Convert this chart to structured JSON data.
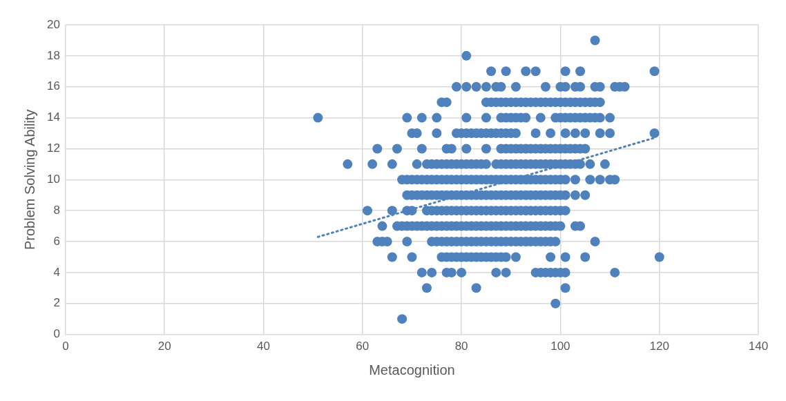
{
  "chart_data": {
    "type": "scatter",
    "xlabel": "Metacognition",
    "ylabel": "Problem Solving Ability",
    "xlim": [
      0,
      140
    ],
    "xticks": [
      0,
      20,
      40,
      60,
      80,
      100,
      120,
      140
    ],
    "ylim": [
      0,
      20
    ],
    "yticks": [
      0,
      2,
      4,
      6,
      8,
      10,
      12,
      14,
      16,
      18,
      20
    ],
    "grid": true,
    "legend": false,
    "marker": "circle",
    "series": [
      {
        "color": "#4f81bd",
        "x": [
          107,
          81,
          86,
          89,
          93,
          95,
          101,
          104,
          119,
          79,
          81,
          83,
          85,
          87,
          88,
          91,
          97,
          100,
          101,
          103,
          104,
          107,
          108,
          111,
          112,
          113,
          76,
          77,
          85,
          86,
          87,
          88,
          89,
          90,
          91,
          92,
          93,
          94,
          95,
          96,
          97,
          98,
          99,
          100,
          101,
          102,
          103,
          104,
          105,
          106,
          107,
          108,
          51,
          69,
          72,
          75,
          81,
          85,
          88,
          89,
          90,
          91,
          92,
          93,
          96,
          99,
          100,
          101,
          102,
          103,
          104,
          105,
          106,
          107,
          108,
          110,
          70,
          71,
          75,
          79,
          80,
          81,
          82,
          83,
          84,
          85,
          86,
          87,
          88,
          89,
          90,
          91,
          95,
          98,
          101,
          103,
          105,
          108,
          110,
          119,
          63,
          67,
          72,
          77,
          78,
          81,
          85,
          88,
          89,
          90,
          91,
          92,
          93,
          94,
          95,
          96,
          97,
          98,
          99,
          100,
          101,
          102,
          103,
          104,
          105,
          57,
          62,
          66,
          71,
          73,
          74,
          75,
          76,
          77,
          78,
          79,
          80,
          81,
          82,
          83,
          84,
          85,
          87,
          88,
          89,
          90,
          91,
          92,
          93,
          94,
          95,
          96,
          97,
          98,
          99,
          100,
          101,
          102,
          103,
          104,
          106,
          109,
          68,
          69,
          70,
          71,
          72,
          73,
          74,
          75,
          76,
          77,
          78,
          79,
          80,
          81,
          82,
          83,
          84,
          85,
          86,
          87,
          88,
          89,
          90,
          91,
          92,
          93,
          94,
          95,
          96,
          97,
          98,
          99,
          100,
          101,
          103,
          106,
          108,
          110,
          111,
          69,
          70,
          71,
          72,
          73,
          74,
          75,
          76,
          77,
          78,
          79,
          80,
          81,
          82,
          83,
          84,
          85,
          86,
          87,
          88,
          89,
          90,
          91,
          92,
          93,
          94,
          95,
          96,
          97,
          98,
          99,
          100,
          101,
          103,
          105,
          61,
          66,
          69,
          70,
          73,
          74,
          75,
          76,
          77,
          78,
          79,
          80,
          81,
          82,
          83,
          84,
          85,
          86,
          87,
          88,
          89,
          90,
          91,
          92,
          93,
          94,
          95,
          96,
          97,
          98,
          99,
          100,
          101,
          64,
          67,
          68,
          69,
          70,
          71,
          72,
          73,
          74,
          75,
          76,
          77,
          78,
          79,
          80,
          81,
          82,
          83,
          84,
          85,
          86,
          87,
          88,
          89,
          90,
          91,
          92,
          93,
          94,
          95,
          96,
          97,
          98,
          99,
          100,
          103,
          104,
          63,
          64,
          65,
          69,
          74,
          75,
          76,
          77,
          78,
          79,
          80,
          81,
          82,
          83,
          84,
          85,
          86,
          87,
          88,
          89,
          90,
          91,
          92,
          93,
          94,
          95,
          96,
          97,
          98,
          99,
          107,
          66,
          70,
          76,
          77,
          78,
          79,
          80,
          81,
          82,
          83,
          84,
          85,
          86,
          87,
          88,
          89,
          91,
          98,
          101,
          105,
          120,
          72,
          74,
          77,
          78,
          80,
          87,
          89,
          95,
          96,
          97,
          98,
          99,
          100,
          101,
          111,
          73,
          83,
          101,
          99,
          68
        ],
        "values": [
          19,
          18,
          17,
          17,
          17,
          17,
          17,
          17,
          17,
          16,
          16,
          16,
          16,
          16,
          16,
          16,
          16,
          16,
          16,
          16,
          16,
          16,
          16,
          16,
          16,
          16,
          15,
          15,
          15,
          15,
          15,
          15,
          15,
          15,
          15,
          15,
          15,
          15,
          15,
          15,
          15,
          15,
          15,
          15,
          15,
          15,
          15,
          15,
          15,
          15,
          15,
          15,
          14,
          14,
          14,
          14,
          14,
          14,
          14,
          14,
          14,
          14,
          14,
          14,
          14,
          14,
          14,
          14,
          14,
          14,
          14,
          14,
          14,
          14,
          14,
          14,
          13,
          13,
          13,
          13,
          13,
          13,
          13,
          13,
          13,
          13,
          13,
          13,
          13,
          13,
          13,
          13,
          13,
          13,
          13,
          13,
          13,
          13,
          13,
          13,
          12,
          12,
          12,
          12,
          12,
          12,
          12,
          12,
          12,
          12,
          12,
          12,
          12,
          12,
          12,
          12,
          12,
          12,
          12,
          12,
          12,
          12,
          12,
          12,
          12,
          11,
          11,
          11,
          11,
          11,
          11,
          11,
          11,
          11,
          11,
          11,
          11,
          11,
          11,
          11,
          11,
          11,
          11,
          11,
          11,
          11,
          11,
          11,
          11,
          11,
          11,
          11,
          11,
          11,
          11,
          11,
          11,
          11,
          11,
          11,
          11,
          11,
          10,
          10,
          10,
          10,
          10,
          10,
          10,
          10,
          10,
          10,
          10,
          10,
          10,
          10,
          10,
          10,
          10,
          10,
          10,
          10,
          10,
          10,
          10,
          10,
          10,
          10,
          10,
          10,
          10,
          10,
          10,
          10,
          10,
          10,
          10,
          10,
          10,
          10,
          10,
          9,
          9,
          9,
          9,
          9,
          9,
          9,
          9,
          9,
          9,
          9,
          9,
          9,
          9,
          9,
          9,
          9,
          9,
          9,
          9,
          9,
          9,
          9,
          9,
          9,
          9,
          9,
          9,
          9,
          9,
          9,
          9,
          9,
          9,
          9,
          8,
          8,
          8,
          8,
          8,
          8,
          8,
          8,
          8,
          8,
          8,
          8,
          8,
          8,
          8,
          8,
          8,
          8,
          8,
          8,
          8,
          8,
          8,
          8,
          8,
          8,
          8,
          8,
          8,
          8,
          8,
          8,
          8,
          7,
          7,
          7,
          7,
          7,
          7,
          7,
          7,
          7,
          7,
          7,
          7,
          7,
          7,
          7,
          7,
          7,
          7,
          7,
          7,
          7,
          7,
          7,
          7,
          7,
          7,
          7,
          7,
          7,
          7,
          7,
          7,
          7,
          7,
          7,
          7,
          7,
          6,
          6,
          6,
          6,
          6,
          6,
          6,
          6,
          6,
          6,
          6,
          6,
          6,
          6,
          6,
          6,
          6,
          6,
          6,
          6,
          6,
          6,
          6,
          6,
          6,
          6,
          6,
          6,
          6,
          6,
          6,
          5,
          5,
          5,
          5,
          5,
          5,
          5,
          5,
          5,
          5,
          5,
          5,
          5,
          5,
          5,
          5,
          5,
          5,
          5,
          5,
          5,
          4,
          4,
          4,
          4,
          4,
          4,
          4,
          4,
          4,
          4,
          4,
          4,
          4,
          4,
          4,
          3,
          3,
          3,
          2,
          1
        ]
      },
      {
        "type": "line",
        "color": "#4f81bd",
        "marker": "none",
        "line_style": "dotted",
        "x": [
          51,
          119
        ],
        "values": [
          6.3,
          12.7
        ]
      }
    ]
  }
}
